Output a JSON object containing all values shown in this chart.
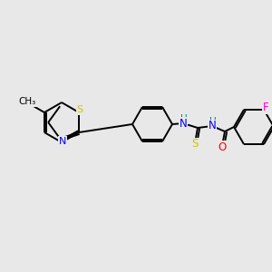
{
  "bg_color": "#e8e8e8",
  "bond_color": "#000000",
  "atom_colors": {
    "S": "#c8c800",
    "N": "#0000ff",
    "O": "#ff0000",
    "F": "#ff00cc",
    "H": "#008080"
  },
  "lw": 1.4,
  "figsize": [
    3.0,
    3.0
  ],
  "dpi": 100
}
